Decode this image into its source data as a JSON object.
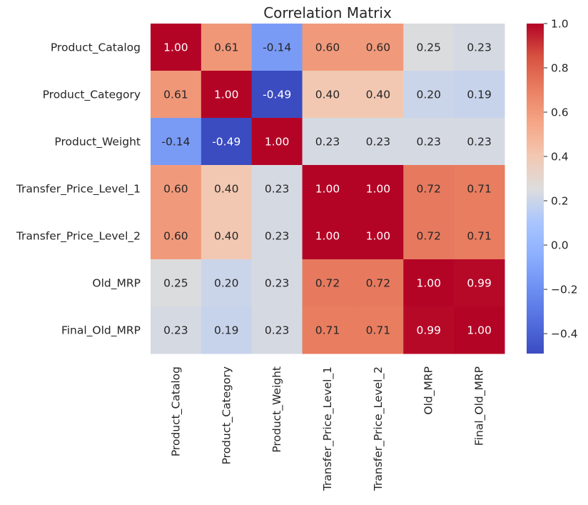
{
  "chart_data": {
    "type": "heatmap",
    "title": "Correlation Matrix",
    "x_labels": [
      "Product_Catalog",
      "Product_Category",
      "Product_Weight",
      "Transfer_Price_Level_1",
      "Transfer_Price_Level_2",
      "Old_MRP",
      "Final_Old_MRP"
    ],
    "y_labels": [
      "Product_Catalog",
      "Product_Category",
      "Product_Weight",
      "Transfer_Price_Level_1",
      "Transfer_Price_Level_2",
      "Old_MRP",
      "Final_Old_MRP"
    ],
    "values": [
      [
        1.0,
        0.61,
        -0.14,
        0.6,
        0.6,
        0.25,
        0.23
      ],
      [
        0.61,
        1.0,
        -0.49,
        0.4,
        0.4,
        0.2,
        0.19
      ],
      [
        -0.14,
        -0.49,
        1.0,
        0.23,
        0.23,
        0.23,
        0.23
      ],
      [
        0.6,
        0.4,
        0.23,
        1.0,
        1.0,
        0.72,
        0.71
      ],
      [
        0.6,
        0.4,
        0.23,
        1.0,
        1.0,
        0.72,
        0.71
      ],
      [
        0.25,
        0.2,
        0.23,
        0.72,
        0.72,
        1.0,
        0.99
      ],
      [
        0.23,
        0.19,
        0.23,
        0.71,
        0.71,
        0.99,
        1.0
      ]
    ],
    "value_labels": [
      [
        "1.00",
        "0.61",
        "-0.14",
        "0.60",
        "0.60",
        "0.25",
        "0.23"
      ],
      [
        "0.61",
        "1.00",
        "-0.49",
        "0.40",
        "0.40",
        "0.20",
        "0.19"
      ],
      [
        "-0.14",
        "-0.49",
        "1.00",
        "0.23",
        "0.23",
        "0.23",
        "0.23"
      ],
      [
        "0.60",
        "0.40",
        "0.23",
        "1.00",
        "1.00",
        "0.72",
        "0.71"
      ],
      [
        "0.60",
        "0.40",
        "0.23",
        "1.00",
        "1.00",
        "0.72",
        "0.71"
      ],
      [
        "0.25",
        "0.20",
        "0.23",
        "0.72",
        "0.72",
        "1.00",
        "0.99"
      ],
      [
        "0.23",
        "0.19",
        "0.23",
        "0.71",
        "0.71",
        "0.99",
        "1.00"
      ]
    ],
    "colormap": "coolwarm",
    "colorbar": {
      "range": [
        -0.49,
        1.0
      ],
      "ticks": [
        1.0,
        0.8,
        0.6,
        0.4,
        0.2,
        0.0,
        -0.2,
        -0.4
      ],
      "tick_labels": [
        "1.0",
        "0.8",
        "0.6",
        "0.4",
        "0.2",
        "0.0",
        "−0.2",
        "−0.4"
      ],
      "position": "right"
    },
    "annotated": true
  }
}
